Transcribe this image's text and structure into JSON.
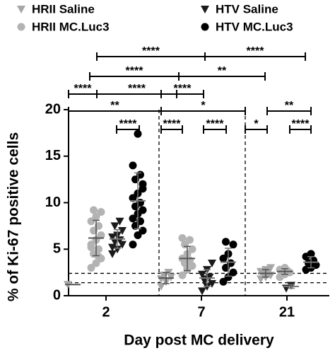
{
  "chart_data": {
    "type": "scatter",
    "y_label": "% of Ki-67 positive cells",
    "x_label": "Day post MC delivery",
    "categories": [
      "2",
      "7",
      "21"
    ],
    "ylim": [
      0,
      20
    ],
    "yticks": [
      0,
      5,
      10,
      15,
      20
    ],
    "reference_lines": [
      2.4,
      1.4
    ],
    "series": [
      {
        "name": "HRII Saline",
        "color": "#a6a6a6",
        "marker": "triangle-down",
        "values": [
          [
            1.2
          ],
          [
            1.0,
            1.5,
            2.0,
            2.2,
            2.5,
            1.8
          ],
          [
            1.8,
            2.0,
            2.2,
            2.4,
            2.5,
            2.6,
            2.8,
            3.0
          ]
        ],
        "means": [
          1.2,
          1.9,
          2.4
        ],
        "sds": [
          0,
          0.6,
          0.4
        ]
      },
      {
        "name": "HRII MC.Luc3",
        "color": "#b3b3b3",
        "marker": "circle",
        "values": [
          [
            3.0,
            3.5,
            4.0,
            4.5,
            5.0,
            5.5,
            6.0,
            6.5,
            7.0,
            7.5,
            8.0,
            8.5,
            9.0,
            9.2,
            4.2,
            5.2
          ],
          [
            2.2,
            2.8,
            3.2,
            3.5,
            3.8,
            4.0,
            4.5,
            5.0,
            5.5,
            6.0,
            6.2,
            3.0
          ],
          [
            2.0,
            2.3,
            2.5,
            2.6,
            2.7,
            2.8,
            3.0
          ]
        ],
        "means": [
          6.2,
          4.0,
          2.6
        ],
        "sds": [
          1.9,
          1.3,
          0.3
        ]
      },
      {
        "name": "HTV Saline",
        "color": "#1a1a1a",
        "marker": "triangle-down",
        "values": [
          [
            4.5,
            5.0,
            5.5,
            5.8,
            6.0,
            6.3,
            6.5,
            7.0,
            7.5,
            8.0,
            5.2
          ],
          [
            0.5,
            1.0,
            1.3,
            1.6,
            2.0,
            2.3,
            2.8,
            3.5,
            1.8
          ],
          [
            0.8,
            1.1
          ]
        ],
        "means": [
          6.1,
          1.9,
          1.0
        ],
        "sds": [
          1.0,
          0.9,
          0.2
        ]
      },
      {
        "name": "HTV MC.Luc3",
        "color": "#000000",
        "marker": "circle",
        "values": [
          [
            5.5,
            6.5,
            7.0,
            7.5,
            8.0,
            8.3,
            8.8,
            9.2,
            9.6,
            10.0,
            10.5,
            11.0,
            11.5,
            12.5,
            13.0,
            14.0,
            17.4,
            12.0
          ],
          [
            1.5,
            2.0,
            2.5,
            3.0,
            3.5,
            4.0,
            4.5,
            5.5,
            5.8
          ],
          [
            2.8,
            3.0,
            3.3,
            3.5,
            3.8,
            4.2,
            4.5
          ]
        ],
        "means": [
          10.2,
          3.6,
          3.6
        ],
        "sds": [
          3.0,
          1.5,
          0.6
        ]
      }
    ],
    "annotations": [
      "****",
      "****",
      "****",
      "**",
      "****",
      "****",
      "****",
      "**",
      "*",
      "**",
      "****",
      "****",
      "****",
      "*",
      "****"
    ]
  }
}
